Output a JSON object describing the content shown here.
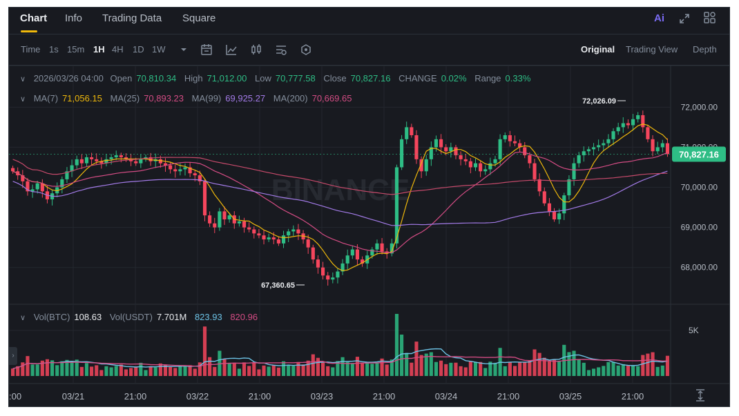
{
  "tabs": [
    "Chart",
    "Info",
    "Trading Data",
    "Square"
  ],
  "top_right": {
    "ai_label": "Ai"
  },
  "toolbar": {
    "timeframes": [
      "Time",
      "1s",
      "15m",
      "1H",
      "4H",
      "1D",
      "1W"
    ],
    "active_timeframe": "1H",
    "views": [
      "Original",
      "Trading View",
      "Depth"
    ],
    "active_view": "Original"
  },
  "ohlc": {
    "date": "2026/03/26 04:00",
    "open_label": "Open",
    "open": "70,810.34",
    "high_label": "High",
    "high": "71,012.00",
    "low_label": "Low",
    "low": "70,777.58",
    "close_label": "Close",
    "close": "70,827.16",
    "change_label": "CHANGE",
    "change": "0.02%",
    "range_label": "Range",
    "range": "0.33%"
  },
  "ma": {
    "ma7_label": "MA(7)",
    "ma7": "71,056.15",
    "ma25_label": "MA(25)",
    "ma25": "70,893.23",
    "ma99_label": "MA(99)",
    "ma99": "69,925.27",
    "ma200_label": "MA(200)",
    "ma200": "70,669.65"
  },
  "volume": {
    "vol_btc_label": "Vol(BTC)",
    "vol_btc": "108.63",
    "vol_usdt_label": "Vol(USDT)",
    "vol_usdt": "7.701M",
    "vol_ma1": "823.93",
    "vol_ma2": "820.96",
    "axis_label": "5K"
  },
  "price_axis": [
    "72,000.00",
    "71,000.00",
    "70,000.00",
    "69,000.00",
    "68,000.00"
  ],
  "current_price": "70,827.16",
  "annotations": {
    "high_marker": "72,026.09",
    "low_marker": "67,360.65"
  },
  "watermark": "BINANCE",
  "time_axis": [
    ":00",
    "03/21",
    "21:00",
    "03/22",
    "21:00",
    "03/23",
    "21:00",
    "03/24",
    "21:00",
    "03/25",
    "21:00"
  ],
  "colors": {
    "up": "#2ebd85",
    "down": "#f6465d",
    "ma7": "#f0b90b",
    "ma25": "#d44c84",
    "ma99": "#a37be8",
    "ma200": "#c74a6b",
    "vol_ma1": "#6dc3e6",
    "vol_ma2": "#d44c84"
  },
  "chart_data": {
    "type": "candlestick",
    "interval": "1H",
    "ylim": [
      67100,
      72350
    ],
    "price_closes": [
      70400,
      70300,
      70150,
      69900,
      69950,
      70100,
      69900,
      69700,
      69850,
      70000,
      70200,
      70400,
      70550,
      70700,
      70600,
      70750,
      70700,
      70650,
      70600,
      70700,
      70750,
      70800,
      70750,
      70700,
      70650,
      70600,
      70700,
      70750,
      70650,
      70700,
      70600,
      70550,
      70450,
      70400,
      70450,
      70500,
      70350,
      70300,
      70150,
      69300,
      69100,
      69000,
      69400,
      69200,
      69300,
      69100,
      69150,
      69000,
      68950,
      68850,
      68800,
      68700,
      68750,
      68700,
      68600,
      68800,
      68900,
      68950,
      68850,
      68700,
      68500,
      68200,
      68000,
      67800,
      67700,
      67750,
      67900,
      68100,
      68300,
      68450,
      68200,
      68100,
      68300,
      68450,
      68600,
      68400,
      68350,
      68600,
      70500,
      71200,
      71500,
      71300,
      70700,
      70400,
      70700,
      71000,
      71200,
      71000,
      70900,
      71000,
      70800,
      70700,
      70650,
      70500,
      70600,
      70400,
      70450,
      70600,
      70700,
      71200,
      71300,
      71150,
      71100,
      71000,
      70800,
      70600,
      70200,
      69900,
      69600,
      69400,
      69200,
      69350,
      69800,
      70200,
      70600,
      70800,
      70900,
      70950,
      71000,
      71050,
      71100,
      71200,
      71400,
      71500,
      71600,
      71550,
      71700,
      71800,
      71500,
      71200,
      70900,
      71000,
      71100,
      70830
    ],
    "series": [
      {
        "name": "MA(7)",
        "last": 71056.15
      },
      {
        "name": "MA(25)",
        "last": 70893.23
      },
      {
        "name": "MA(99)",
        "last": 69925.27
      },
      {
        "name": "MA(200)",
        "last": 70669.65
      }
    ],
    "high": 72026.09,
    "low": 67360.65,
    "last_close": 70827.16
  }
}
